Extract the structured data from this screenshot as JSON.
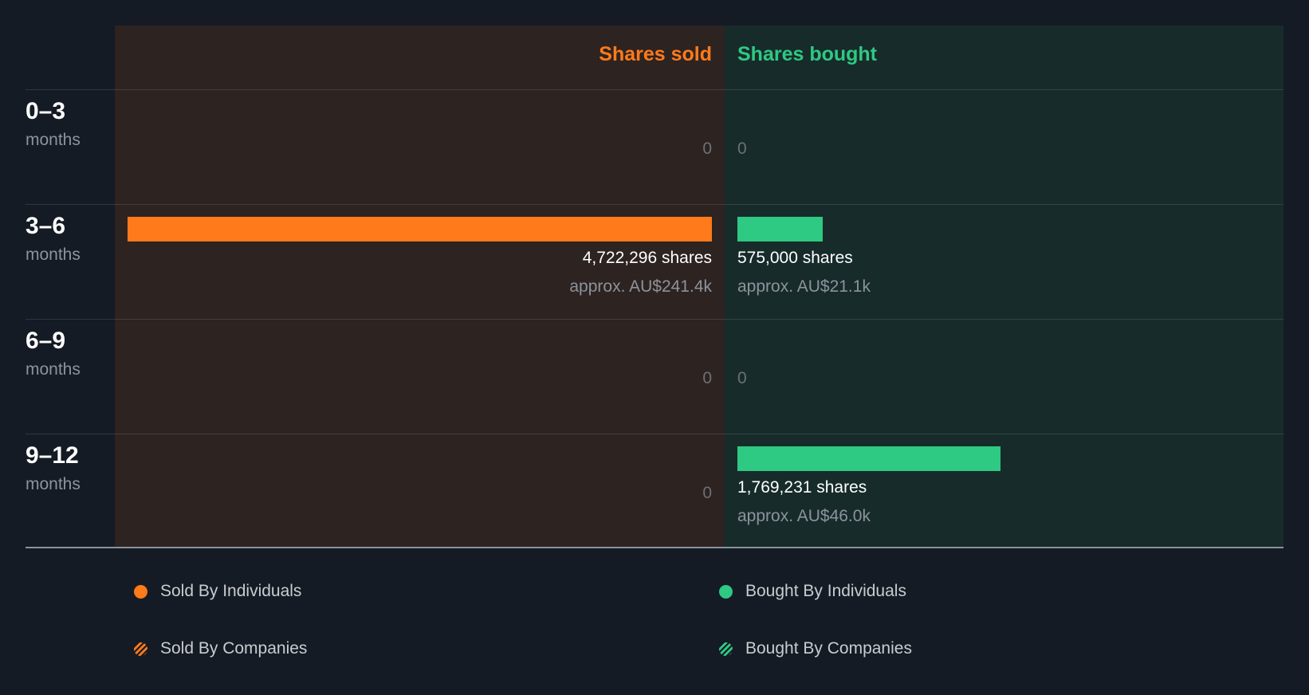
{
  "chart_data": {
    "type": "bar",
    "title": "",
    "headers": {
      "sold": "Shares sold",
      "bought": "Shares bought"
    },
    "colors": {
      "sold": "#ff7a1a",
      "bought": "#2ec982",
      "sold_bg": "#2d2321",
      "bought_bg": "#172b2b",
      "page_bg": "#151b24"
    },
    "categories": [
      {
        "range": "0–3",
        "unit": "months"
      },
      {
        "range": "3–6",
        "unit": "months"
      },
      {
        "range": "6–9",
        "unit": "months"
      },
      {
        "range": "9–12",
        "unit": "months"
      }
    ],
    "series": [
      {
        "name": "Shares sold",
        "values": [
          0,
          4722296,
          0,
          0
        ],
        "share_labels": [
          "0",
          "4,722,296 shares",
          "0",
          "0"
        ],
        "value_labels": [
          "",
          "approx. AU$241.4k",
          "",
          ""
        ]
      },
      {
        "name": "Shares bought",
        "values": [
          0,
          575000,
          0,
          1769231
        ],
        "share_labels": [
          "0",
          "575,000 shares",
          "0",
          "1,769,231 shares"
        ],
        "value_labels": [
          "",
          "approx. AU$21.1k",
          "",
          "approx. AU$46.0k"
        ]
      }
    ],
    "legend": [
      {
        "label": "Sold By Individuals",
        "color": "#ff7a1a",
        "pattern": "solid"
      },
      {
        "label": "Bought By Individuals",
        "color": "#2ec982",
        "pattern": "solid"
      },
      {
        "label": "Sold By Companies",
        "color": "#ff7a1a",
        "pattern": "striped"
      },
      {
        "label": "Bought By Companies",
        "color": "#2ec982",
        "pattern": "striped"
      }
    ]
  }
}
